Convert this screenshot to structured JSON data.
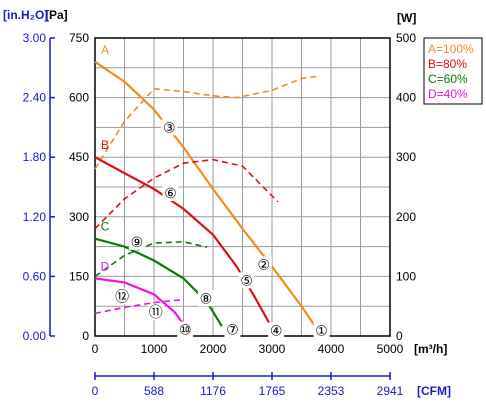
{
  "chart_data": {
    "type": "line",
    "axes": {
      "x_m3h": {
        "label": "[m³/h]",
        "range": [
          0,
          5000
        ],
        "ticks": [
          "0",
          "1000",
          "2000",
          "3000",
          "4000",
          "5000"
        ]
      },
      "x_cfm": {
        "label": "[CFM]",
        "ticks": [
          "0",
          "588",
          "1176",
          "1765",
          "2353",
          "2941"
        ]
      },
      "y_pa": {
        "label": "[Pa]",
        "range": [
          0,
          750
        ],
        "ticks": [
          "0",
          "150",
          "300",
          "450",
          "600",
          "750"
        ]
      },
      "y_inh2o": {
        "label": "[in.H₂O]",
        "ticks": [
          "0.00",
          "0.60",
          "1.20",
          "1.80",
          "2.40",
          "3.00"
        ]
      },
      "y_w": {
        "label": "[W]",
        "range": [
          0,
          500
        ],
        "ticks": [
          "0",
          "100",
          "200",
          "300",
          "400",
          "500"
        ]
      }
    },
    "grid": true,
    "legend_position": "top-right",
    "series": [
      {
        "name": "A=100%",
        "letter": "A",
        "color": "#f28c1e",
        "pressure": {
          "x": [
            0,
            500,
            1000,
            1500,
            2000,
            2500,
            3000,
            3500,
            3750
          ],
          "y": [
            690,
            640,
            570,
            475,
            370,
            270,
            175,
            75,
            20
          ]
        },
        "power": {
          "x": [
            0,
            500,
            1000,
            1500,
            2000,
            2400,
            3000,
            3500,
            3800
          ],
          "y": [
            280,
            360,
            415,
            410,
            403,
            400,
            412,
            432,
            436
          ]
        }
      },
      {
        "name": "B=80%",
        "letter": "B",
        "color": "#dd1111",
        "pressure": {
          "x": [
            0,
            500,
            1000,
            1500,
            2000,
            2400,
            2700,
            3000
          ],
          "y": [
            450,
            410,
            370,
            320,
            255,
            175,
            100,
            20
          ]
        },
        "power": {
          "x": [
            0,
            500,
            1000,
            1500,
            2000,
            2500,
            3100
          ],
          "y": [
            180,
            230,
            265,
            290,
            296,
            285,
            225
          ]
        }
      },
      {
        "name": "C=60%",
        "letter": "C",
        "color": "#0a7a0a",
        "pressure": {
          "x": [
            0,
            500,
            1000,
            1500,
            1900,
            2150
          ],
          "y": [
            245,
            225,
            190,
            145,
            85,
            25
          ]
        },
        "power": {
          "x": [
            0,
            500,
            1000,
            1500,
            1900
          ],
          "y": [
            100,
            135,
            156,
            158,
            149
          ]
        }
      },
      {
        "name": "D=40%",
        "letter": "D",
        "color": "#ee11ee",
        "pressure": {
          "x": [
            0,
            500,
            1000,
            1350,
            1500
          ],
          "y": [
            145,
            135,
            105,
            60,
            30
          ]
        },
        "power": {
          "x": [
            0,
            500,
            1000,
            1500
          ],
          "y": [
            38,
            48,
            56,
            61
          ]
        }
      }
    ],
    "markers": [
      {
        "label": "①",
        "x": 3840,
        "y": 14
      },
      {
        "label": "②",
        "x": 2860,
        "y": 180
      },
      {
        "label": "③",
        "x": 1260,
        "y": 525
      },
      {
        "label": "④",
        "x": 3070,
        "y": 14
      },
      {
        "label": "⑤",
        "x": 2570,
        "y": 140
      },
      {
        "label": "⑥",
        "x": 1280,
        "y": 360
      },
      {
        "label": "⑦",
        "x": 2330,
        "y": 16
      },
      {
        "label": "⑧",
        "x": 1880,
        "y": 95
      },
      {
        "label": "⑨",
        "x": 710,
        "y": 237
      },
      {
        "label": "⑩",
        "x": 1530,
        "y": 16
      },
      {
        "label": "⑪",
        "x": 1030,
        "y": 60
      },
      {
        "label": "⑫",
        "x": 460,
        "y": 100
      }
    ]
  }
}
